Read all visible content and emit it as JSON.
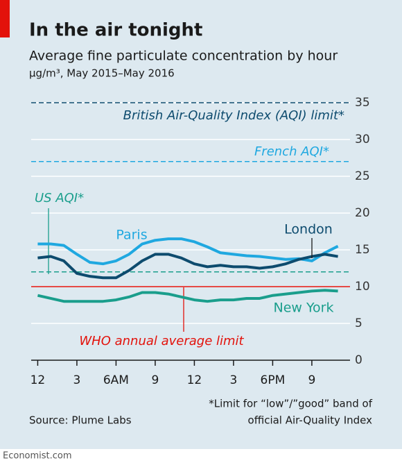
{
  "chart_data": {
    "type": "line",
    "title": "In the air tonight",
    "subtitle": "Average fine particulate concentration by hour",
    "unit": "µg/m³, May 2015–May 2016",
    "x": [
      0,
      1,
      2,
      3,
      4,
      5,
      6,
      7,
      8,
      9,
      10,
      11,
      12,
      13,
      14,
      15,
      16,
      17,
      18,
      19,
      20,
      21,
      22,
      23
    ],
    "series": [
      {
        "name": "Paris",
        "color": "#1fa8e0",
        "values": [
          15.8,
          15.8,
          15.6,
          14.4,
          13.3,
          13.1,
          13.5,
          14.4,
          15.8,
          16.3,
          16.5,
          16.5,
          16.1,
          15.4,
          14.6,
          14.4,
          14.2,
          14.1,
          13.9,
          13.7,
          13.8,
          13.5,
          14.6,
          15.5
        ]
      },
      {
        "name": "London",
        "color": "#0d4b6e",
        "values": [
          13.9,
          14.1,
          13.5,
          11.8,
          11.4,
          11.2,
          11.2,
          12.2,
          13.5,
          14.4,
          14.4,
          13.9,
          13.1,
          12.7,
          12.9,
          12.7,
          12.7,
          12.5,
          12.7,
          13.1,
          13.7,
          14.1,
          14.4,
          14.1
        ]
      },
      {
        "name": "New York",
        "color": "#1a9e8c",
        "values": [
          8.8,
          8.4,
          8.0,
          8.0,
          8.0,
          8.0,
          8.2,
          8.6,
          9.2,
          9.2,
          9.0,
          8.6,
          8.2,
          8.0,
          8.2,
          8.2,
          8.4,
          8.4,
          8.8,
          9.0,
          9.2,
          9.4,
          9.5,
          9.4
        ]
      }
    ],
    "reference_lines": [
      {
        "name": "British Air-Quality Index (AQI) limit*",
        "value": 35,
        "color": "#0d4b6e",
        "dashed": true
      },
      {
        "name": "French AQI*",
        "value": 27,
        "color": "#1fa8e0",
        "dashed": true
      },
      {
        "name": "US AQI*",
        "value": 12,
        "color": "#1a9e8c",
        "dashed": true
      },
      {
        "name": "WHO annual average limit",
        "value": 10,
        "color": "#e3120b",
        "dashed": false
      }
    ],
    "xlim": [
      -0.5,
      23.5
    ],
    "ylim": [
      0,
      35
    ],
    "xticks": [
      {
        "value": 0,
        "label": "12"
      },
      3,
      {
        "value": 6,
        "label": "6AM"
      },
      9,
      12,
      {
        "value": 15,
        "label": "3"
      },
      {
        "value": 18,
        "label": "6PM"
      },
      {
        "value": 21,
        "label": "9"
      }
    ],
    "yticks": [
      0,
      5,
      10,
      15,
      20,
      25,
      30,
      35
    ],
    "grid": true,
    "note": [
      "*Limit for “low”/”good” band of",
      "official Air-Quality Index"
    ],
    "source": "Source: Plume Labs",
    "footer": "Economist.com"
  }
}
